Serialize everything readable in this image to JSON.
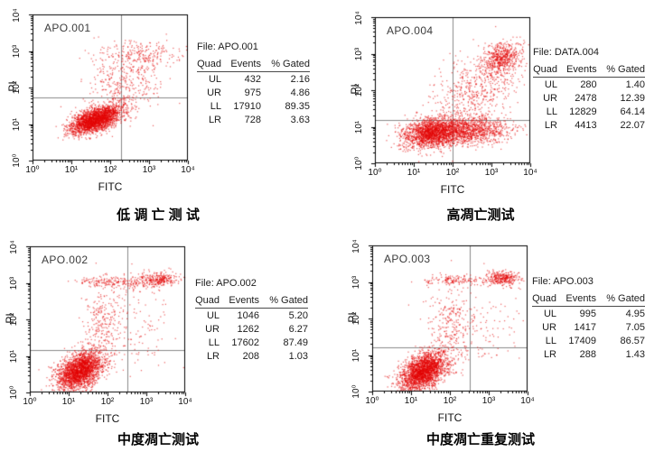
{
  "figure": {
    "quad_line_color": "#8a8a8a",
    "frame_color": "#000000",
    "background": "#ffffff"
  },
  "chart_data": [
    {
      "type": "scatter",
      "dataset_label": "APO.001",
      "file": "File: APO.001",
      "title": "低 调 亡 测 试",
      "xlabel": "FITC",
      "ylabel": "PI",
      "x_scale": "log",
      "y_scale": "log",
      "xlim_log10": [
        0,
        4
      ],
      "ylim_log10": [
        0,
        4
      ],
      "x_tick_labels": [
        "10⁰",
        "10¹",
        "10²",
        "10³",
        "10⁴"
      ],
      "y_tick_labels": [
        "10⁰",
        "10¹",
        "10²",
        "10³",
        "10⁴"
      ],
      "point_color": "#e20404",
      "quadrant_gate_log10": {
        "x": 2.27,
        "y": 1.73
      },
      "stats_table": {
        "headers": [
          "Quad",
          "Events",
          "% Gated"
        ],
        "rows": [
          [
            "UL",
            "432",
            "2.16"
          ],
          [
            "UR",
            "975",
            "4.86"
          ],
          [
            "LL",
            "17910",
            "89.35"
          ],
          [
            "LR",
            "728",
            "3.63"
          ]
        ]
      },
      "populations": [
        {
          "name": "viable-main",
          "count": 2400,
          "cx": 1.62,
          "cy": 1.13,
          "sx": 0.33,
          "sy": 0.19,
          "rho": 0.55
        },
        {
          "name": "mid-diffuse",
          "count": 300,
          "cx": 2.35,
          "cy": 1.95,
          "sx": 0.5,
          "sy": 0.45,
          "rho": 0.3
        },
        {
          "name": "upper-band",
          "count": 240,
          "cx": 2.8,
          "cy": 2.85,
          "sx": 0.55,
          "sy": 0.22,
          "rho": 0.1
        },
        {
          "name": "sparse-upper",
          "count": 60,
          "cx": 2.0,
          "cy": 2.5,
          "sx": 0.4,
          "sy": 0.4,
          "rho": 0
        }
      ]
    },
    {
      "type": "scatter",
      "dataset_label": "APO.004",
      "file": "File: DATA.004",
      "title": "高凋亡测试",
      "xlabel": "FITC",
      "ylabel": "PI",
      "x_scale": "log",
      "y_scale": "log",
      "xlim_log10": [
        0,
        4
      ],
      "ylim_log10": [
        0,
        4
      ],
      "x_tick_labels": [
        "10⁰",
        "10¹",
        "10²",
        "10³",
        "10⁴"
      ],
      "y_tick_labels": [
        "10⁰",
        "10¹",
        "10²",
        "10³",
        "10⁴"
      ],
      "point_color": "#e20404",
      "quadrant_gate_log10": {
        "x": 2.0,
        "y": 1.19
      },
      "stats_table": {
        "headers": [
          "Quad",
          "Events",
          "% Gated"
        ],
        "rows": [
          [
            "UL",
            "280",
            "1.40"
          ],
          [
            "UR",
            "2478",
            "12.39"
          ],
          [
            "LL",
            "12829",
            "64.14"
          ],
          [
            "LR",
            "4413",
            "22.07"
          ]
        ]
      },
      "populations": [
        {
          "name": "main-LL",
          "count": 1800,
          "cx": 1.45,
          "cy": 0.85,
          "sx": 0.35,
          "sy": 0.2,
          "rho": 0.25
        },
        {
          "name": "LR-extension",
          "count": 1100,
          "cx": 2.4,
          "cy": 0.9,
          "sx": 0.5,
          "sy": 0.18,
          "rho": 0.1
        },
        {
          "name": "UR-blob",
          "count": 550,
          "cx": 3.25,
          "cy": 2.9,
          "sx": 0.25,
          "sy": 0.22,
          "rho": 0.3
        },
        {
          "name": "mid-diffuse",
          "count": 600,
          "cx": 2.6,
          "cy": 1.95,
          "sx": 0.55,
          "sy": 0.55,
          "rho": 0.35
        }
      ]
    },
    {
      "type": "scatter",
      "dataset_label": "APO.002",
      "file": "File: APO.002",
      "title": "中度凋亡测试",
      "xlabel": "FITC",
      "ylabel": "PI",
      "x_scale": "log",
      "y_scale": "log",
      "xlim_log10": [
        0,
        4
      ],
      "ylim_log10": [
        0,
        4
      ],
      "x_tick_labels": [
        "10⁰",
        "10¹",
        "10²",
        "10³",
        "10⁴"
      ],
      "y_tick_labels": [
        "10⁰",
        "10¹",
        "10²",
        "10³",
        "10⁴"
      ],
      "point_color": "#e20404",
      "quadrant_gate_log10": {
        "x": 2.52,
        "y": 1.16
      },
      "stats_table": {
        "headers": [
          "Quad",
          "Events",
          "% Gated"
        ],
        "rows": [
          [
            "UL",
            "1046",
            "5.20"
          ],
          [
            "UR",
            "1262",
            "6.27"
          ],
          [
            "LL",
            "17602",
            "87.49"
          ],
          [
            "LR",
            "208",
            "1.03"
          ]
        ]
      },
      "populations": [
        {
          "name": "viable-main",
          "count": 2400,
          "cx": 1.28,
          "cy": 0.62,
          "sx": 0.3,
          "sy": 0.27,
          "rho": 0.45
        },
        {
          "name": "apoptotic-column",
          "count": 280,
          "cx": 1.9,
          "cy": 1.85,
          "sx": 0.28,
          "sy": 0.6,
          "rho": 0.1
        },
        {
          "name": "top-band-left",
          "count": 160,
          "cx": 2.05,
          "cy": 3.04,
          "sx": 0.38,
          "sy": 0.07,
          "rho": 0
        },
        {
          "name": "top-band-right",
          "count": 300,
          "cx": 3.3,
          "cy": 3.1,
          "sx": 0.27,
          "sy": 0.1,
          "rho": 0
        },
        {
          "name": "sparse-right",
          "count": 90,
          "cx": 2.9,
          "cy": 1.7,
          "sx": 0.45,
          "sy": 0.55,
          "rho": 0.2
        },
        {
          "name": "band-middle",
          "count": 40,
          "cx": 2.7,
          "cy": 3.0,
          "sx": 0.25,
          "sy": 0.15,
          "rho": 0
        }
      ]
    },
    {
      "type": "scatter",
      "dataset_label": "APO.003",
      "file": "File: APO.003",
      "title": "中度凋亡重复测试",
      "xlabel": "FITC",
      "ylabel": "PI",
      "x_scale": "log",
      "y_scale": "log",
      "xlim_log10": [
        0,
        4
      ],
      "ylim_log10": [
        0,
        4
      ],
      "x_tick_labels": [
        "10⁰",
        "10¹",
        "10²",
        "10³",
        "10⁴"
      ],
      "y_tick_labels": [
        "10⁰",
        "10¹",
        "10²",
        "10³",
        "10⁴"
      ],
      "point_color": "#e20404",
      "quadrant_gate_log10": {
        "x": 2.5,
        "y": 1.21
      },
      "stats_table": {
        "headers": [
          "Quad",
          "Events",
          "% Gated"
        ],
        "rows": [
          [
            "UL",
            "995",
            "4.95"
          ],
          [
            "UR",
            "1417",
            "7.05"
          ],
          [
            "LL",
            "17409",
            "86.57"
          ],
          [
            "LR",
            "288",
            "1.43"
          ]
        ]
      },
      "populations": [
        {
          "name": "viable-main",
          "count": 2400,
          "cx": 1.32,
          "cy": 0.58,
          "sx": 0.3,
          "sy": 0.27,
          "rho": 0.45
        },
        {
          "name": "apoptotic-column",
          "count": 300,
          "cx": 2.0,
          "cy": 1.85,
          "sx": 0.3,
          "sy": 0.6,
          "rho": 0.1
        },
        {
          "name": "top-band-left",
          "count": 140,
          "cx": 2.1,
          "cy": 3.06,
          "sx": 0.4,
          "sy": 0.08,
          "rho": 0
        },
        {
          "name": "top-band-right",
          "count": 330,
          "cx": 3.35,
          "cy": 3.12,
          "sx": 0.24,
          "sy": 0.11,
          "rho": 0
        },
        {
          "name": "sparse-right",
          "count": 90,
          "cx": 2.95,
          "cy": 1.7,
          "sx": 0.45,
          "sy": 0.55,
          "rho": 0.2
        }
      ]
    }
  ]
}
